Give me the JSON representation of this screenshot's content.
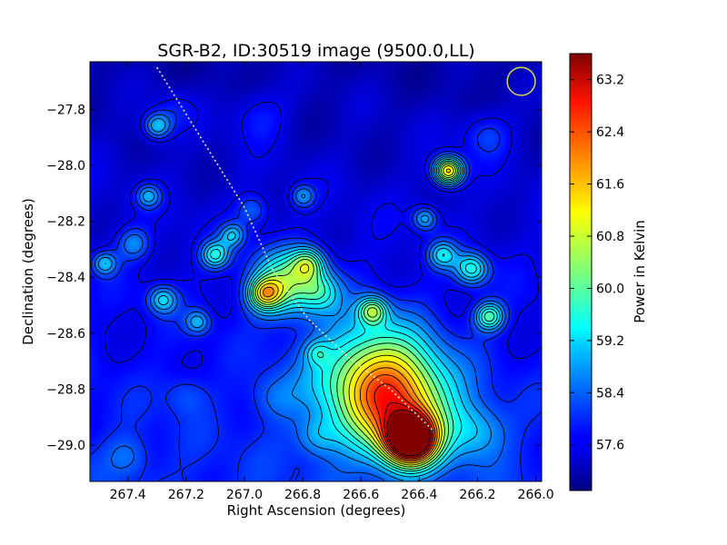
{
  "chart_data": {
    "type": "heatmap",
    "title": "SGR-B2, ID:30519 image (9500.0,LL)",
    "xlabel": "Right Ascension (degrees)",
    "ylabel": "Declination (degrees)",
    "xlim": [
      267.53,
      265.98
    ],
    "ylim": [
      -29.13,
      -27.63
    ],
    "xticks": [
      267.4,
      267.2,
      267.0,
      266.8,
      266.6,
      266.4,
      266.2,
      266.0
    ],
    "xtick_labels": [
      "267.4",
      "267.2",
      "267.0",
      "266.8",
      "266.6",
      "266.4",
      "266.2",
      "266.0"
    ],
    "yticks": [
      -27.8,
      -28.0,
      -28.2,
      -28.4,
      -28.6,
      -28.8,
      -29.0
    ],
    "ytick_labels": [
      "−27.8",
      "−28.0",
      "−28.2",
      "−28.4",
      "−28.6",
      "−28.8",
      "−29.0"
    ],
    "colorbar": {
      "label": "Power in Kelvin",
      "range": [
        56.9,
        63.6
      ],
      "ticks": [
        57.6,
        58.4,
        59.2,
        60.0,
        60.8,
        61.6,
        62.4,
        63.2
      ],
      "tick_labels": [
        "57.6",
        "58.4",
        "59.2",
        "60.0",
        "60.8",
        "61.6",
        "62.4",
        "63.2"
      ],
      "colormap": "jet"
    },
    "background_level": 57.3,
    "sources": [
      {
        "ra": 266.43,
        "dec": -28.98,
        "peak": 63.5,
        "sigma": 0.06
      },
      {
        "ra": 266.47,
        "dec": -28.86,
        "peak": 60.6,
        "sigma": 0.13
      },
      {
        "ra": 266.57,
        "dec": -28.74,
        "peak": 59.6,
        "sigma": 0.14
      },
      {
        "ra": 266.3,
        "dec": -28.02,
        "peak": 61.4,
        "sigma": 0.035
      },
      {
        "ra": 266.86,
        "dec": -28.42,
        "peak": 59.8,
        "sigma": 0.08
      },
      {
        "ra": 266.93,
        "dec": -28.46,
        "peak": 59.9,
        "sigma": 0.04
      },
      {
        "ra": 266.78,
        "dec": -28.35,
        "peak": 59.3,
        "sigma": 0.04
      },
      {
        "ra": 267.1,
        "dec": -28.32,
        "peak": 59.2,
        "sigma": 0.035
      },
      {
        "ra": 267.04,
        "dec": -28.25,
        "peak": 58.7,
        "sigma": 0.03
      },
      {
        "ra": 267.3,
        "dec": -27.86,
        "peak": 59.0,
        "sigma": 0.035
      },
      {
        "ra": 267.33,
        "dec": -28.11,
        "peak": 58.6,
        "sigma": 0.03
      },
      {
        "ra": 267.38,
        "dec": -28.28,
        "peak": 58.4,
        "sigma": 0.04
      },
      {
        "ra": 267.48,
        "dec": -28.35,
        "peak": 58.7,
        "sigma": 0.03
      },
      {
        "ra": 267.28,
        "dec": -28.48,
        "peak": 58.8,
        "sigma": 0.035
      },
      {
        "ra": 267.16,
        "dec": -28.56,
        "peak": 58.5,
        "sigma": 0.03
      },
      {
        "ra": 266.56,
        "dec": -28.52,
        "peak": 59.6,
        "sigma": 0.035
      },
      {
        "ra": 266.16,
        "dec": -28.54,
        "peak": 59.6,
        "sigma": 0.035
      },
      {
        "ra": 266.22,
        "dec": -28.37,
        "peak": 59.3,
        "sigma": 0.04
      },
      {
        "ra": 266.32,
        "dec": -28.32,
        "peak": 58.9,
        "sigma": 0.035
      },
      {
        "ra": 266.38,
        "dec": -28.19,
        "peak": 58.7,
        "sigma": 0.03
      },
      {
        "ra": 266.8,
        "dec": -28.11,
        "peak": 58.5,
        "sigma": 0.03
      },
      {
        "ra": 266.97,
        "dec": -28.16,
        "peak": 58.2,
        "sigma": 0.04
      },
      {
        "ra": 266.74,
        "dec": -28.45,
        "peak": 58.7,
        "sigma": 0.05
      },
      {
        "ra": 266.75,
        "dec": -28.67,
        "peak": 58.2,
        "sigma": 0.03
      },
      {
        "ra": 266.17,
        "dec": -27.89,
        "peak": 58.1,
        "sigma": 0.06
      },
      {
        "ra": 266.95,
        "dec": -27.82,
        "peak": 57.9,
        "sigma": 0.07
      },
      {
        "ra": 267.24,
        "dec": -27.8,
        "peak": 57.8,
        "sigma": 0.05
      },
      {
        "ra": 267.4,
        "dec": -29.04,
        "peak": 57.9,
        "sigma": 0.05
      },
      {
        "ra": 266.75,
        "dec": -28.97,
        "peak": 58.1,
        "sigma": 0.05
      },
      {
        "ra": 266.2,
        "dec": -28.95,
        "peak": 58.3,
        "sigma": 0.07
      },
      {
        "ra": 266.9,
        "dec": -28.83,
        "peak": 57.9,
        "sigma": 0.06
      },
      {
        "ra": 267.2,
        "dec": -28.82,
        "peak": 57.8,
        "sigma": 0.05
      }
    ],
    "sky_gradient": {
      "dec_top": -27.63,
      "dec_bottom": -29.13,
      "top_level": 57.2,
      "bottom_level": 58.0
    },
    "contour_levels": [
      57.65,
      58.0,
      58.35,
      58.7,
      59.05,
      59.4,
      59.75,
      60.1,
      60.5,
      60.9,
      61.3,
      61.7,
      62.1,
      62.5,
      62.9,
      63.3
    ],
    "overlay_path": {
      "color": "#e6e6b4",
      "points": [
        [
          267.3,
          -27.65
        ],
        [
          267.0,
          -28.15
        ],
        [
          266.9,
          -28.38
        ],
        [
          266.78,
          -28.55
        ],
        [
          266.65,
          -28.68
        ],
        [
          266.5,
          -28.8
        ],
        [
          266.35,
          -28.95
        ]
      ]
    },
    "beam_marker": {
      "ra": 266.05,
      "dec": -27.7,
      "radius_deg": 0.05,
      "color": "#d8d840"
    }
  }
}
